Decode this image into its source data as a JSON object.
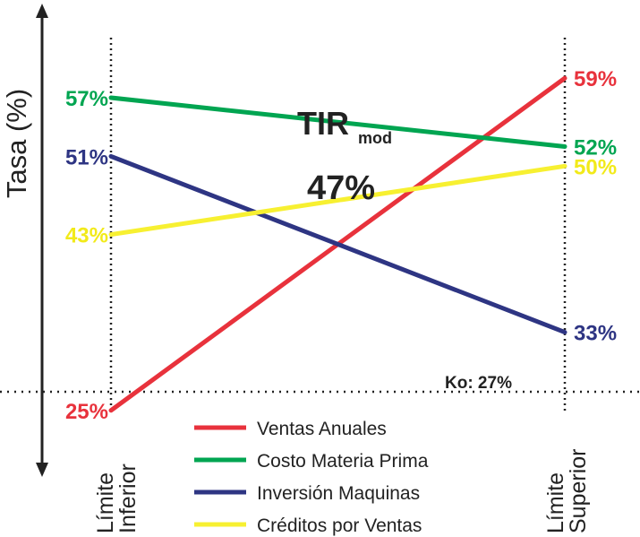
{
  "chart_data": {
    "type": "line",
    "ylabel": "Tasa (%)",
    "x_labels": {
      "left": [
        "Límite",
        "Inferior"
      ],
      "right": [
        "Límite",
        "Superior"
      ]
    },
    "series": [
      {
        "name": "Ventas Anuales",
        "color": "#e8323c",
        "left": 25,
        "right": 59,
        "left_label": "25%",
        "right_label": "59%"
      },
      {
        "name": "Costo Materia Prima",
        "color": "#00a551",
        "left": 57,
        "right": 52,
        "left_label": "57%",
        "right_label": "52%"
      },
      {
        "name": "Inversión Maquinas",
        "color": "#2e3583",
        "left": 51,
        "right": 33,
        "left_label": "51%",
        "right_label": "33%"
      },
      {
        "name": "Créditos por Ventas",
        "color": "#f7f031",
        "left": 43,
        "right": 50,
        "left_label": "43%",
        "right_label": "50%"
      }
    ],
    "center": {
      "value": 47,
      "title_main": "TIR",
      "title_sub": "mod",
      "label": "47%"
    },
    "reference": {
      "label": "Ko: 27%",
      "value": 27
    },
    "legend_position": "bottom-center"
  }
}
